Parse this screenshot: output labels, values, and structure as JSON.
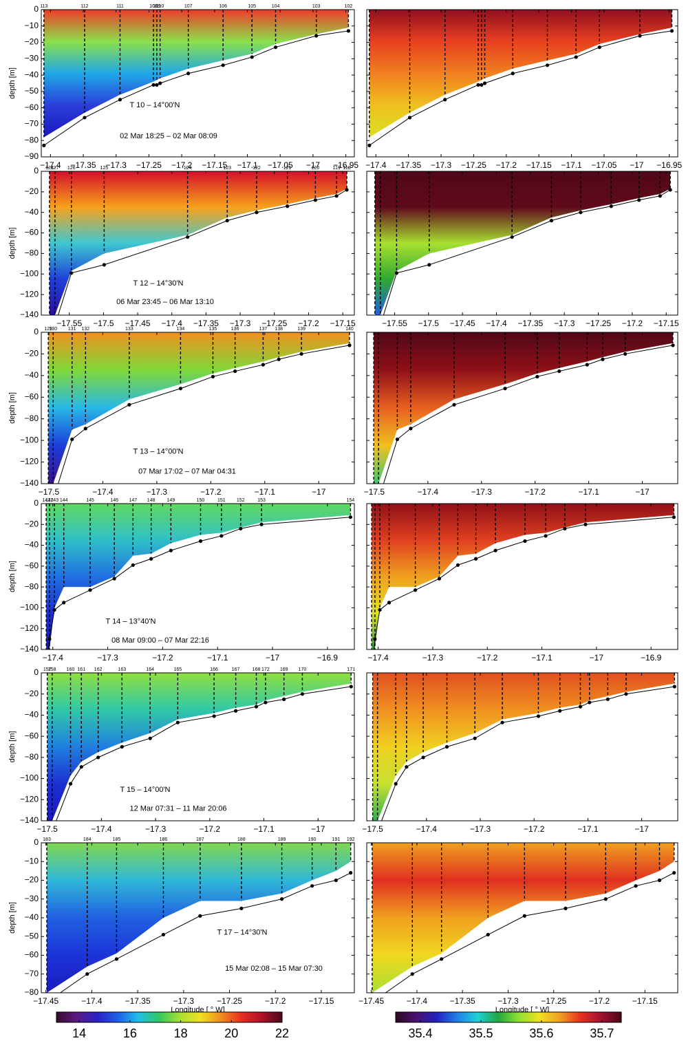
{
  "chart_data": [
    {
      "type": "section",
      "ylabel": "depth [m]",
      "title": "T 10 – 14°00'N",
      "subtitle": "02 Mar 18:25 – 02 Mar 08:09",
      "stations": [
        "113",
        "112",
        "111",
        "108",
        "109",
        "110",
        "107",
        "106",
        "105",
        "104",
        "103",
        "102"
      ],
      "x": [
        -17.41,
        -17.348,
        -17.294,
        -17.243,
        -17.238,
        -17.233,
        -17.19,
        -17.137,
        -17.093,
        -17.057,
        -16.995,
        -16.946
      ],
      "bottom": [
        -83,
        -66,
        -55,
        -46,
        -46,
        -45,
        -39,
        -34,
        -29,
        -23,
        -16,
        -13
      ],
      "cast": [
        -78,
        -63,
        -52,
        -44,
        -43,
        -42,
        -36,
        -31,
        -27,
        -21,
        -15,
        -11
      ],
      "xlim": [
        -17.414,
        -16.937
      ],
      "xticks": [
        {
          "value": -17.4,
          "label": "−17.4"
        },
        {
          "value": -17.35,
          "label": "−17.35"
        },
        {
          "value": -17.3,
          "label": "−17.3"
        },
        {
          "value": -17.25,
          "label": "−17.25"
        },
        {
          "value": -17.2,
          "label": "−17.2"
        },
        {
          "value": -17.15,
          "label": "−17.15"
        },
        {
          "value": -17.1,
          "label": "−17.1"
        },
        {
          "value": -17.05,
          "label": "−17.05"
        },
        {
          "value": -17,
          "label": "−17"
        },
        {
          "value": -16.95,
          "label": "−16.95"
        }
      ],
      "ylim": [
        -90,
        0
      ],
      "yticks": [
        0,
        {
          "value": -10,
          "label": "−10"
        },
        {
          "value": -20,
          "label": "−20"
        },
        {
          "value": -30,
          "label": "−30"
        },
        {
          "value": -40,
          "label": "−40"
        },
        {
          "value": -50,
          "label": "−50"
        },
        {
          "value": -60,
          "label": "−60"
        },
        {
          "value": -70,
          "label": "−70"
        },
        {
          "value": -80,
          "label": "−80"
        },
        {
          "value": -90,
          "label": "−90"
        }
      ],
      "temperature_colors": [
        "#ee3a2a",
        "#8be04a",
        "#1fa8e8",
        "#2a3fd8",
        "#1a17c0"
      ],
      "salinity_colors": [
        "#901020",
        "#e84020",
        "#f08020",
        "#f0c020",
        "#d8e020"
      ]
    },
    {
      "type": "section",
      "ylabel": "depth [m]",
      "title": "T 12 – 14°30'N",
      "subtitle": "06 Mar 23:45 – 06 Mar 13:10",
      "stations": [
        "128",
        "127",
        "126",
        "125",
        "124",
        "123",
        "122",
        "121",
        "120",
        "119",
        "118"
      ],
      "x": [
        -17.579,
        -17.571,
        -17.547,
        -17.499,
        -17.377,
        -17.319,
        -17.276,
        -17.231,
        -17.19,
        -17.159,
        -17.144
      ],
      "bottom": [
        -160,
        -150,
        -99,
        -91,
        -64,
        -48,
        -40,
        -34,
        -28,
        -24,
        -18
      ],
      "cast": [
        -140,
        -140,
        -97,
        -80,
        -62,
        -45,
        -38,
        -32,
        -26,
        -22,
        -17
      ],
      "xlim": [
        -17.591,
        -17.133
      ],
      "xticks": [
        {
          "value": -17.55,
          "label": "−17.55"
        },
        {
          "value": -17.5,
          "label": "−17.5"
        },
        {
          "value": -17.45,
          "label": "−17.45"
        },
        {
          "value": -17.4,
          "label": "−17.4"
        },
        {
          "value": -17.35,
          "label": "−17.35"
        },
        {
          "value": -17.3,
          "label": "−17.3"
        },
        {
          "value": -17.25,
          "label": "−17.25"
        },
        {
          "value": -17.2,
          "label": "−17.2"
        },
        {
          "value": -17.15,
          "label": "−17.15"
        }
      ],
      "ylim": [
        -140,
        0
      ],
      "yticks": [
        0,
        {
          "value": -20,
          "label": "−20"
        },
        {
          "value": -40,
          "label": "−40"
        },
        {
          "value": -60,
          "label": "−60"
        },
        {
          "value": -80,
          "label": "−80"
        },
        {
          "value": -100,
          "label": "−100"
        },
        {
          "value": -120,
          "label": "−120"
        },
        {
          "value": -140,
          "label": "−140"
        }
      ],
      "temperature_colors": [
        "#d4102a",
        "#f7a21c",
        "#3ec8d0",
        "#1f40d8",
        "#2a10a0"
      ],
      "salinity_colors": [
        "#500818",
        "#600a1c",
        "#a8e030",
        "#30a830",
        "#2060e0"
      ]
    },
    {
      "type": "section",
      "ylabel": "depth [m]",
      "title": "T 13 – 14°00'N",
      "subtitle": "07 Mar 17:02 – 07 Mar 04:31",
      "stations": [
        "129",
        "130",
        "131",
        "132",
        "133",
        "134",
        "135",
        "136",
        "137",
        "138",
        "139",
        "140"
      ],
      "x": [
        -17.501,
        -17.492,
        -17.457,
        -17.432,
        -17.351,
        -17.256,
        -17.196,
        -17.155,
        -17.103,
        -17.074,
        -17.032,
        -16.943
      ],
      "bottom": [
        -160,
        -155,
        -99,
        -89,
        -67,
        -52,
        -41,
        -36,
        -30,
        -25,
        -20,
        -12
      ],
      "cast": [
        -140,
        -140,
        -90,
        -85,
        -62,
        -48,
        -38,
        -33,
        -27,
        -23,
        -18,
        -10
      ],
      "xlim": [
        -17.514,
        -16.934
      ],
      "xticks": [
        {
          "value": -17.5,
          "label": "−17.5"
        },
        {
          "value": -17.4,
          "label": "−17.4"
        },
        {
          "value": -17.3,
          "label": "−17.3"
        },
        {
          "value": -17.2,
          "label": "−17.2"
        },
        {
          "value": -17.1,
          "label": "−17.1"
        },
        {
          "value": -17,
          "label": "−17"
        }
      ],
      "ylim": [
        -140,
        0
      ],
      "yticks": [
        0,
        {
          "value": -20,
          "label": "−20"
        },
        {
          "value": -40,
          "label": "−40"
        },
        {
          "value": -60,
          "label": "−60"
        },
        {
          "value": -80,
          "label": "−80"
        },
        {
          "value": -100,
          "label": "−100"
        },
        {
          "value": -120,
          "label": "−120"
        },
        {
          "value": -140,
          "label": "−140"
        }
      ],
      "temperature_colors": [
        "#f09020",
        "#7fd838",
        "#28b8e8",
        "#1c3ed8",
        "#3a1090"
      ],
      "salinity_colors": [
        "#500818",
        "#901018",
        "#e86020",
        "#f0c020",
        "#40c870"
      ]
    },
    {
      "type": "section",
      "ylabel": "depth [m]",
      "title": "T 14 – 13°40'N",
      "subtitle": "08 Mar 09:00 – 07 Mar 22:16",
      "stations": [
        "141",
        "142",
        "143",
        "144",
        "145",
        "146",
        "147",
        "148",
        "149",
        "150",
        "151",
        "152",
        "153",
        "154"
      ],
      "x": [
        -17.412,
        -17.406,
        -17.397,
        -17.38,
        -17.332,
        -17.288,
        -17.254,
        -17.221,
        -17.185,
        -17.131,
        -17.093,
        -17.058,
        -17.02,
        -16.858
      ],
      "bottom": [
        -160,
        -130,
        -102,
        -95,
        -83,
        -72,
        -59,
        -53,
        -45,
        -36,
        -31,
        -24,
        -20,
        -13
      ],
      "cast": [
        -140,
        -140,
        -100,
        -80,
        -80,
        -70,
        -50,
        -48,
        -38,
        -30,
        -28,
        -23,
        -18,
        -11
      ],
      "xlim": [
        -17.421,
        -16.851
      ],
      "xticks": [
        {
          "value": -17.4,
          "label": "−17.4"
        },
        {
          "value": -17.3,
          "label": "−17.3"
        },
        {
          "value": -17.2,
          "label": "−17.2"
        },
        {
          "value": -17.1,
          "label": "−17.1"
        },
        {
          "value": -17,
          "label": "−17"
        },
        {
          "value": -16.9,
          "label": "−16.9"
        }
      ],
      "ylim": [
        -140,
        0
      ],
      "yticks": [
        0,
        {
          "value": -20,
          "label": "−20"
        },
        {
          "value": -40,
          "label": "−40"
        },
        {
          "value": -60,
          "label": "−60"
        },
        {
          "value": -80,
          "label": "−80"
        },
        {
          "value": -100,
          "label": "−100"
        },
        {
          "value": -120,
          "label": "−120"
        },
        {
          "value": -140,
          "label": "−140"
        }
      ],
      "temperature_colors": [
        "#60d860",
        "#30c0c8",
        "#2070e0",
        "#1c30d0",
        "#1a18b8"
      ],
      "salinity_colors": [
        "#901018",
        "#e04020",
        "#f0a020",
        "#e0e020",
        "#30a040"
      ]
    },
    {
      "type": "section",
      "ylabel": "depth [m]",
      "title": "T 15 – 14°00'N",
      "subtitle": "12 Mar 07:31 – 11 Mar 20:06",
      "stations": [
        "157",
        "158",
        "160",
        "161",
        "162",
        "163",
        "164",
        "165",
        "166",
        "167",
        "168",
        "172",
        "169",
        "170",
        "171"
      ],
      "x": [
        -17.5,
        -17.491,
        -17.457,
        -17.437,
        -17.406,
        -17.362,
        -17.31,
        -17.259,
        -17.192,
        -17.152,
        -17.114,
        -17.097,
        -17.063,
        -17.029,
        -16.939
      ],
      "bottom": [
        -160,
        -150,
        -105,
        -89,
        -80,
        -70,
        -62,
        -47,
        -41,
        -36,
        -32,
        -28,
        -25,
        -20,
        -13
      ],
      "cast": [
        -140,
        -140,
        -97,
        -84,
        -75,
        -66,
        -57,
        -44,
        -38,
        -33,
        -30,
        -26,
        -22,
        -18,
        -10
      ],
      "xlim": [
        -17.511,
        -16.933
      ],
      "xticks": [
        {
          "value": -17.5,
          "label": "−17.5"
        },
        {
          "value": -17.4,
          "label": "−17.4"
        },
        {
          "value": -17.3,
          "label": "−17.3"
        },
        {
          "value": -17.2,
          "label": "−17.2"
        },
        {
          "value": -17.1,
          "label": "−17.1"
        },
        {
          "value": -17,
          "label": "−17"
        }
      ],
      "ylim": [
        -140,
        0
      ],
      "yticks": [
        0,
        {
          "value": -20,
          "label": "−20"
        },
        {
          "value": -40,
          "label": "−40"
        },
        {
          "value": -60,
          "label": "−60"
        },
        {
          "value": -80,
          "label": "−80"
        },
        {
          "value": -100,
          "label": "−100"
        },
        {
          "value": -120,
          "label": "−120"
        },
        {
          "value": -140,
          "label": "−140"
        }
      ],
      "temperature_colors": [
        "#90e040",
        "#30c8a8",
        "#2080e0",
        "#1c30d0",
        "#1a18c0"
      ],
      "salinity_colors": [
        "#e05020",
        "#f09020",
        "#f0d020",
        "#c8e030",
        "#30b050"
      ]
    },
    {
      "type": "section",
      "ylabel": "depth [m]",
      "title": "T 17 – 14°30'N",
      "subtitle": "15 Mar 02:08 – 15 Mar 07:30",
      "xlabel": "Longitude [ ° W]",
      "stations": [
        "183",
        "184",
        "185",
        "186",
        "187",
        "188",
        "189",
        "190",
        "191",
        "192"
      ],
      "x": [
        -17.449,
        -17.405,
        -17.373,
        -17.322,
        -17.282,
        -17.237,
        -17.193,
        -17.16,
        -17.134,
        -17.118
      ],
      "bottom": [
        -85,
        -70,
        -62,
        -49,
        -39,
        -35,
        -30,
        -23,
        -20,
        -16
      ],
      "cast": [
        -80,
        -66,
        -59,
        -40,
        -31,
        -31,
        -27,
        -20,
        -15,
        -10
      ],
      "xlim": [
        -17.455,
        -17.114
      ],
      "xticks": [
        {
          "value": -17.45,
          "label": "−17.45"
        },
        {
          "value": -17.4,
          "label": "−17.4"
        },
        {
          "value": -17.35,
          "label": "−17.35"
        },
        {
          "value": -17.3,
          "label": "−17.3"
        },
        {
          "value": -17.25,
          "label": "−17.25"
        },
        {
          "value": -17.2,
          "label": "−17.2"
        },
        {
          "value": -17.15,
          "label": "−17.15"
        }
      ],
      "ylim": [
        -80,
        0
      ],
      "yticks": [
        0,
        {
          "value": -10,
          "label": "−10"
        },
        {
          "value": -20,
          "label": "−20"
        },
        {
          "value": -30,
          "label": "−30"
        },
        {
          "value": -40,
          "label": "−40"
        },
        {
          "value": -50,
          "label": "−50"
        },
        {
          "value": -60,
          "label": "−60"
        },
        {
          "value": -70,
          "label": "−70"
        },
        {
          "value": -80,
          "label": "−80"
        }
      ],
      "temperature_colors": [
        "#80d850",
        "#30b8d8",
        "#2060e0",
        "#1c34d8",
        "#1a1ac0"
      ],
      "salinity_colors": [
        "#f0a020",
        "#e03020",
        "#f0a020",
        "#f0d820",
        "#a8e030"
      ]
    },
    {
      "type": "colorbar",
      "lim": [
        13.1,
        22
      ],
      "ticks": [
        14,
        16,
        18,
        20,
        22
      ],
      "colors": [
        "#3a0a30",
        "#5a1a80",
        "#2a20c8",
        "#1e60e8",
        "#20c0e8",
        "#30c860",
        "#a8e030",
        "#f0e020",
        "#f09020",
        "#e83020",
        "#b01028",
        "#4a0818"
      ]
    },
    {
      "type": "colorbar",
      "lim": [
        35.359,
        35.732
      ],
      "ticks": [
        35.4,
        35.5,
        35.6,
        35.7
      ],
      "colors": [
        "#2a0a20",
        "#4a1070",
        "#2020c0",
        "#2080e8",
        "#20d0d8",
        "#20a840",
        "#90e030",
        "#f0e020",
        "#f0a020",
        "#e83020",
        "#a01030",
        "#4a0818"
      ]
    }
  ]
}
